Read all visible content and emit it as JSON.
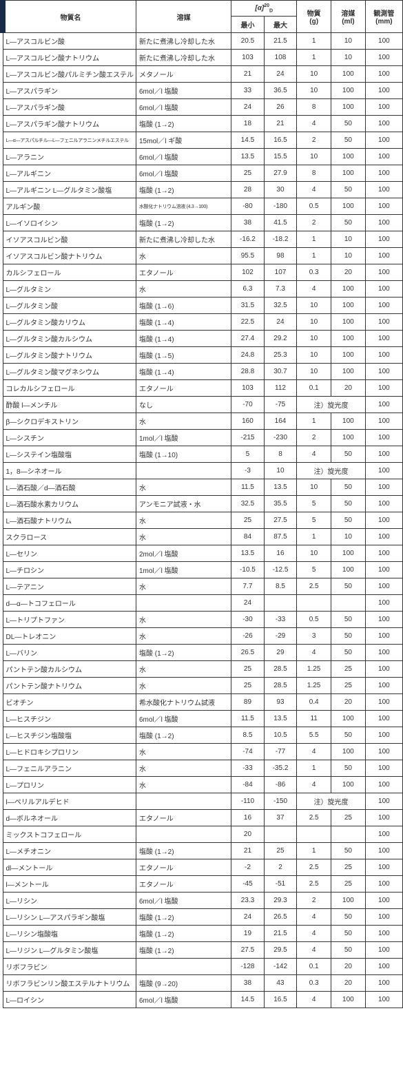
{
  "headers": {
    "name": "物質名",
    "solvent": "溶媒",
    "alpha_main": "[α]",
    "alpha_sup": "20",
    "alpha_sub": "D",
    "min": "最小",
    "max": "最大",
    "substance_g": "物質",
    "substance_g_unit": "(g)",
    "solvent_ml": "溶媒",
    "solvent_ml_unit": "(ml)",
    "tube": "観測管",
    "tube_unit": "(mm)"
  },
  "rows": [
    {
      "name": "L―アスコルビン酸",
      "solvent": "新たに煮沸し冷却した水",
      "min": "20.5",
      "max": "21.5",
      "g": "1",
      "ml": "10",
      "mm": "100"
    },
    {
      "name": "L―アスコルビン酸ナトリウム",
      "solvent": "新たに煮沸し冷却した水",
      "min": "103",
      "max": "108",
      "g": "1",
      "ml": "10",
      "mm": "100"
    },
    {
      "name": "L―アスコルビン酸パルミチン酸エステル",
      "solvent": "メタノール",
      "min": "21",
      "max": "24",
      "g": "10",
      "ml": "100",
      "mm": "100"
    },
    {
      "name": "L―アスパラギン",
      "solvent": "6mol／l 塩酸",
      "min": "33",
      "max": "36.5",
      "g": "10",
      "ml": "100",
      "mm": "100"
    },
    {
      "name": "L―アスパラギン酸",
      "solvent": "6mol／l 塩酸",
      "min": "24",
      "max": "26",
      "g": "8",
      "ml": "100",
      "mm": "100"
    },
    {
      "name": "L―アスパラギン酸ナトリウム",
      "solvent": "塩酸 (1→2)",
      "min": "18",
      "max": "21",
      "g": "4",
      "ml": "50",
      "mm": "100"
    },
    {
      "name": "L―α―アスパルチル―L―フェニルアラニンメチルエステル",
      "solvent": "15mol／l ギ酸",
      "min": "14.5",
      "max": "16.5",
      "g": "2",
      "ml": "50",
      "mm": "100",
      "shrink": true
    },
    {
      "name": "L―アラニン",
      "solvent": "6mol／l 塩酸",
      "min": "13.5",
      "max": "15.5",
      "g": "10",
      "ml": "100",
      "mm": "100"
    },
    {
      "name": "L―アルギニン",
      "solvent": "6mol／l 塩酸",
      "min": "25",
      "max": "27.9",
      "g": "8",
      "ml": "100",
      "mm": "100"
    },
    {
      "name": "L―アルギニン L―グルタミン酸塩",
      "solvent": "塩酸 (1→2)",
      "min": "28",
      "max": "30",
      "g": "4",
      "ml": "50",
      "mm": "100"
    },
    {
      "name": "アルギン酸",
      "solvent": "水酸化ナトリウム溶液 (4.3→100)",
      "min": "-80",
      "max": "-180",
      "g": "0.5",
      "ml": "100",
      "mm": "100",
      "solvent_shrink": true
    },
    {
      "name": "L―イソロイシン",
      "solvent": "塩酸 (1→2)",
      "min": "38",
      "max": "41.5",
      "g": "2",
      "ml": "50",
      "mm": "100"
    },
    {
      "name": "イソアスコルビン酸",
      "solvent": "新たに煮沸し冷却した水",
      "min": "-16.2",
      "max": "-18.2",
      "g": "1",
      "ml": "10",
      "mm": "100"
    },
    {
      "name": "イソアスコルビン酸ナトリウム",
      "solvent": "水",
      "min": "95.5",
      "max": "98",
      "g": "1",
      "ml": "10",
      "mm": "100"
    },
    {
      "name": "カルシフェロール",
      "solvent": "エタノール",
      "min": "102",
      "max": "107",
      "g": "0.3",
      "ml": "20",
      "mm": "100"
    },
    {
      "name": "L―グルタミン",
      "solvent": "水",
      "min": "6.3",
      "max": "7.3",
      "g": "4",
      "ml": "100",
      "mm": "100"
    },
    {
      "name": "L―グルタミン酸",
      "solvent": "塩酸 (1→6)",
      "min": "31.5",
      "max": "32.5",
      "g": "10",
      "ml": "100",
      "mm": "100"
    },
    {
      "name": "L―グルタミン酸カリウム",
      "solvent": "塩酸 (1→4)",
      "min": "22.5",
      "max": "24",
      "g": "10",
      "ml": "100",
      "mm": "100"
    },
    {
      "name": "L―グルタミン酸カルシウム",
      "solvent": "塩酸 (1→4)",
      "min": "27.4",
      "max": "29.2",
      "g": "10",
      "ml": "100",
      "mm": "100"
    },
    {
      "name": "L―グルタミン酸ナトリウム",
      "solvent": "塩酸 (1→5)",
      "min": "24.8",
      "max": "25.3",
      "g": "10",
      "ml": "100",
      "mm": "100"
    },
    {
      "name": "L―グルタミン酸マグネシウム",
      "solvent": "塩酸 (1→4)",
      "min": "28.8",
      "max": "30.7",
      "g": "10",
      "ml": "100",
      "mm": "100"
    },
    {
      "name": "コレカルシフェロール",
      "solvent": "エタノール",
      "min": "103",
      "max": "112",
      "g": "0.1",
      "ml": "20",
      "mm": "100"
    },
    {
      "name": "酢酸 l―メンチル",
      "solvent": "なし",
      "min": "-70",
      "max": "-75",
      "note": "注）旋光度",
      "mm": "100"
    },
    {
      "name": "β―シクロデキストリン",
      "solvent": "水",
      "min": "160",
      "max": "164",
      "g": "1",
      "ml": "100",
      "mm": "100"
    },
    {
      "name": "L―シスチン",
      "solvent": "1mol／l 塩酸",
      "min": "-215",
      "max": "-230",
      "g": "2",
      "ml": "100",
      "mm": "100"
    },
    {
      "name": "L―システイン塩酸塩",
      "solvent": "塩酸 (1→10)",
      "min": "5",
      "max": "8",
      "g": "4",
      "ml": "50",
      "mm": "100"
    },
    {
      "name": "1，8―シネオール",
      "solvent": "",
      "min": "-3",
      "max": "10",
      "note": "注）旋光度",
      "mm": "100"
    },
    {
      "name": "L―酒石酸／d―酒石酸",
      "solvent": "水",
      "min": "11.5",
      "max": "13.5",
      "g": "10",
      "ml": "50",
      "mm": "100"
    },
    {
      "name": "L―酒石酸水素カリウム",
      "solvent": "アンモニア試液・水",
      "min": "32.5",
      "max": "35.5",
      "g": "5",
      "ml": "50",
      "mm": "100"
    },
    {
      "name": "L―酒石酸ナトリウム",
      "solvent": "水",
      "min": "25",
      "max": "27.5",
      "g": "5",
      "ml": "50",
      "mm": "100"
    },
    {
      "name": "スクラロース",
      "solvent": "水",
      "min": "84",
      "max": "87.5",
      "g": "1",
      "ml": "10",
      "mm": "100"
    },
    {
      "name": "L―セリン",
      "solvent": "2mol／l 塩酸",
      "min": "13.5",
      "max": "16",
      "g": "10",
      "ml": "100",
      "mm": "100"
    },
    {
      "name": "L―チロシン",
      "solvent": "1mol／l 塩酸",
      "min": "-10.5",
      "max": "-12.5",
      "g": "5",
      "ml": "100",
      "mm": "100"
    },
    {
      "name": "L―テアニン",
      "solvent": "水",
      "min": "7.7",
      "max": "8.5",
      "g": "2.5",
      "ml": "50",
      "mm": "100"
    },
    {
      "name": "d―α―トコフェロール",
      "solvent": "",
      "min": "24",
      "max": "",
      "g": "",
      "ml": "",
      "mm": "100"
    },
    {
      "name": "L―トリプトファン",
      "solvent": "水",
      "min": "-30",
      "max": "-33",
      "g": "0.5",
      "ml": "50",
      "mm": "100"
    },
    {
      "name": "DL―トレオニン",
      "solvent": "水",
      "min": "-26",
      "max": "-29",
      "g": "3",
      "ml": "50",
      "mm": "100"
    },
    {
      "name": "L―バリン",
      "solvent": "塩酸 (1→2)",
      "min": "26.5",
      "max": "29",
      "g": "4",
      "ml": "50",
      "mm": "100"
    },
    {
      "name": "パントテン酸カルシウム",
      "solvent": "水",
      "min": "25",
      "max": "28.5",
      "g": "1.25",
      "ml": "25",
      "mm": "100"
    },
    {
      "name": "パントテン酸ナトリウム",
      "solvent": "水",
      "min": "25",
      "max": "28.5",
      "g": "1.25",
      "ml": "25",
      "mm": "100"
    },
    {
      "name": "ビオチン",
      "solvent": "希水酸化ナトリウム試液",
      "min": "89",
      "max": "93",
      "g": "0.4",
      "ml": "20",
      "mm": "100"
    },
    {
      "name": "L―ヒスチジン",
      "solvent": "6mol／l 塩酸",
      "min": "11.5",
      "max": "13.5",
      "g": "11",
      "ml": "100",
      "mm": "100"
    },
    {
      "name": "L―ヒスチジン塩酸塩",
      "solvent": "塩酸 (1→2)",
      "min": "8.5",
      "max": "10.5",
      "g": "5.5",
      "ml": "50",
      "mm": "100"
    },
    {
      "name": "L―ヒドロキシプロリン",
      "solvent": "水",
      "min": "-74",
      "max": "-77",
      "g": "4",
      "ml": "100",
      "mm": "100"
    },
    {
      "name": "L―フェニルアラニン",
      "solvent": "水",
      "min": "-33",
      "max": "-35.2",
      "g": "1",
      "ml": "50",
      "mm": "100"
    },
    {
      "name": "L―プロリン",
      "solvent": "水",
      "min": "-84",
      "max": "-86",
      "g": "4",
      "ml": "100",
      "mm": "100"
    },
    {
      "name": "l―ペリルアルデヒド",
      "solvent": "",
      "min": "-110",
      "max": "-150",
      "note": "注）旋光度",
      "mm": "100"
    },
    {
      "name": "d―ボルネオール",
      "solvent": "エタノール",
      "min": "16",
      "max": "37",
      "g": "2.5",
      "ml": "25",
      "mm": "100"
    },
    {
      "name": "ミックストコフェロール",
      "solvent": "",
      "min": "20",
      "max": "",
      "g": "",
      "ml": "",
      "mm": "100"
    },
    {
      "name": "L―メチオニン",
      "solvent": "塩酸 (1→2)",
      "min": "21",
      "max": "25",
      "g": "1",
      "ml": "50",
      "mm": "100"
    },
    {
      "name": "dl―メントール",
      "solvent": "エタノール",
      "min": "-2",
      "max": "2",
      "g": "2.5",
      "ml": "25",
      "mm": "100"
    },
    {
      "name": "l―メントール",
      "solvent": "エタノール",
      "min": "-45",
      "max": "-51",
      "g": "2.5",
      "ml": "25",
      "mm": "100"
    },
    {
      "name": "L―リシン",
      "solvent": "6mol／l 塩酸",
      "min": "23.3",
      "max": "29.3",
      "g": "2",
      "ml": "100",
      "mm": "100"
    },
    {
      "name": "L―リシン L―アスパラギン酸塩",
      "solvent": "塩酸 (1→2)",
      "min": "24",
      "max": "26.5",
      "g": "4",
      "ml": "50",
      "mm": "100"
    },
    {
      "name": "L―リシン塩酸塩",
      "solvent": "塩酸 (1→2)",
      "min": "19",
      "max": "21.5",
      "g": "4",
      "ml": "50",
      "mm": "100"
    },
    {
      "name": "L―リジン L―グルタミン酸塩",
      "solvent": "塩酸 (1→2)",
      "min": "27.5",
      "max": "29.5",
      "g": "4",
      "ml": "50",
      "mm": "100"
    },
    {
      "name": "リボフラビン",
      "solvent": "",
      "min": "-128",
      "max": "-142",
      "g": "0.1",
      "ml": "20",
      "mm": "100"
    },
    {
      "name": "リボフラビンリン酸エステルナトリウム",
      "solvent": "塩酸 (9→20)",
      "min": "38",
      "max": "43",
      "g": "0.3",
      "ml": "20",
      "mm": "100"
    },
    {
      "name": "L―ロイシン",
      "solvent": "6mol／l 塩酸",
      "min": "14.5",
      "max": "16.5",
      "g": "4",
      "ml": "100",
      "mm": "100"
    }
  ]
}
